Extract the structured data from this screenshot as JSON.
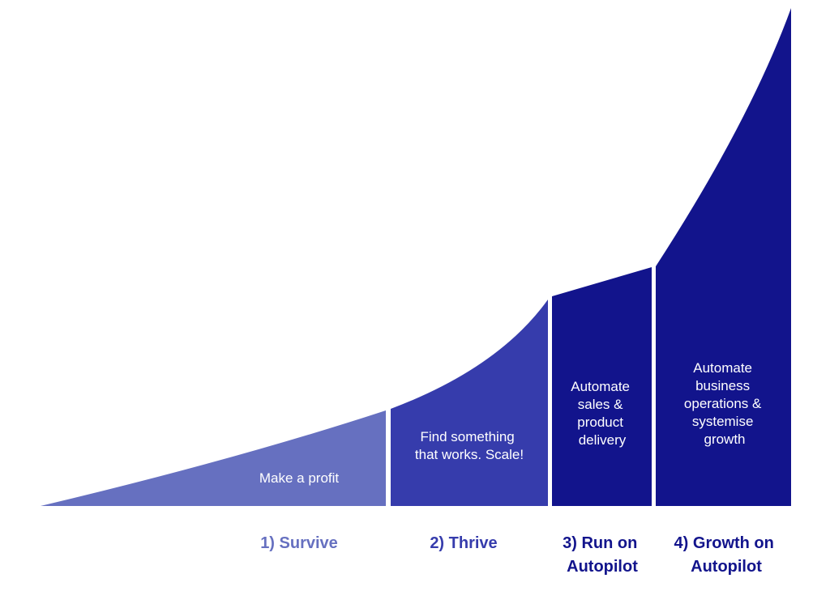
{
  "stages": [
    {
      "id": "survive",
      "label_lines": [
        "1) Survive"
      ],
      "desc_lines": [
        "Make a profit"
      ],
      "fill": "#6670c0",
      "label_color": "#6670c0"
    },
    {
      "id": "thrive",
      "label_lines": [
        "2) Thrive"
      ],
      "desc_lines": [
        "Find something",
        "that works. Scale!"
      ],
      "fill": "#363cac",
      "label_color": "#363cac"
    },
    {
      "id": "run-on-autopilot",
      "label_lines": [
        "3) Run on",
        "Autopilot"
      ],
      "desc_lines": [
        "Automate",
        "sales &",
        "product",
        "delivery"
      ],
      "fill": "#12148c",
      "label_color": "#12148c"
    },
    {
      "id": "growth-on-autopilot",
      "label_lines": [
        "4) Growth on",
        "Autopilot"
      ],
      "desc_lines": [
        "Automate",
        "business",
        "operations &",
        "systemise",
        "growth"
      ],
      "fill": "#12148c",
      "label_color": "#12148c"
    }
  ]
}
